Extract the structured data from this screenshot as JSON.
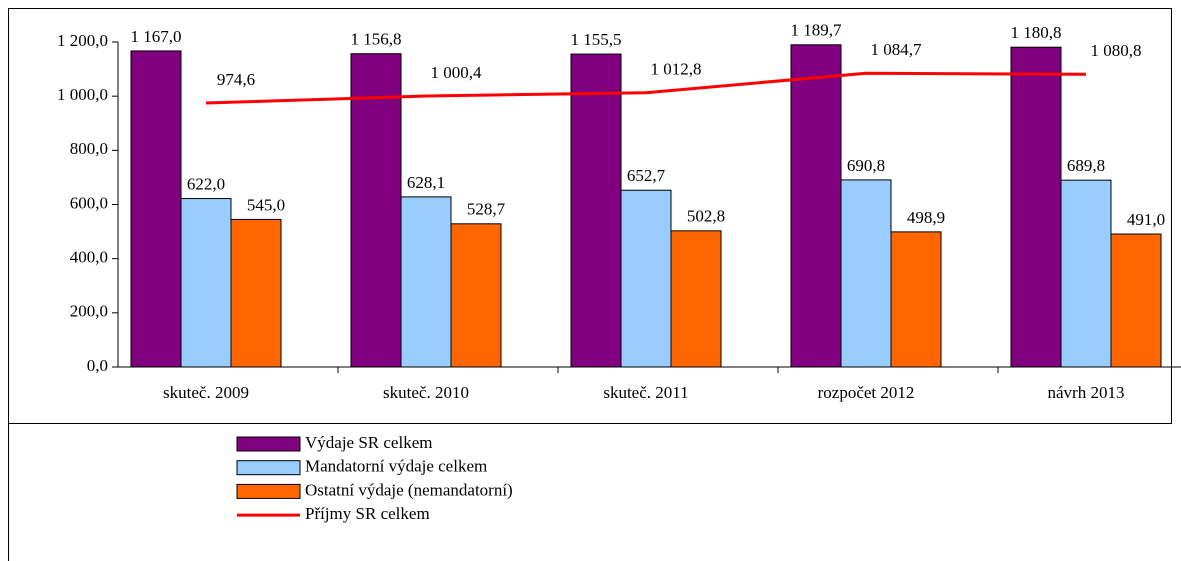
{
  "chart_data": {
    "type": "bar",
    "categories": [
      "skuteč. 2009",
      "skuteč. 2010",
      "skuteč. 2011",
      "rozpočet 2012",
      "návrh 2013"
    ],
    "series": [
      {
        "name": "Výdaje SR celkem",
        "type": "bar",
        "color": "#800080",
        "values": [
          1167.0,
          1156.8,
          1155.5,
          1189.7,
          1180.8
        ],
        "value_labels": [
          "1 167,0",
          "1 156,8",
          "1 155,5",
          "1 189,7",
          "1 180,8"
        ]
      },
      {
        "name": "Mandatorní výdaje celkem",
        "type": "bar",
        "color": "#99ccff",
        "values": [
          622.0,
          628.1,
          652.7,
          690.8,
          689.8
        ],
        "value_labels": [
          "622,0",
          "628,1",
          "652,7",
          "690,8",
          "689,8"
        ]
      },
      {
        "name": "Ostatní výdaje (nemandatorní)",
        "type": "bar",
        "color": "#ff6600",
        "values": [
          545.0,
          528.7,
          502.8,
          498.9,
          491.0
        ],
        "value_labels": [
          "545,0",
          "528,7",
          "502,8",
          "498,9",
          "491,0"
        ]
      },
      {
        "name": "Příjmy SR celkem",
        "type": "line",
        "color": "#ff0000",
        "values": [
          974.6,
          1000.4,
          1012.8,
          1084.7,
          1080.8
        ],
        "value_labels": [
          "974,6",
          "1 000,4",
          "1 012,8",
          "1 084,7",
          "1 080,8"
        ]
      }
    ],
    "ylim": [
      0,
      1200
    ],
    "yticks": [
      {
        "value": 0,
        "label": "0,0"
      },
      {
        "value": 200,
        "label": "200,0"
      },
      {
        "value": 400,
        "label": "400,0"
      },
      {
        "value": 600,
        "label": "600,0"
      },
      {
        "value": 800,
        "label": "800,0"
      },
      {
        "value": 1000,
        "label": "1 000,0"
      },
      {
        "value": 1200,
        "label": "1 200,0"
      }
    ],
    "grid": false,
    "legend": "bottom"
  }
}
